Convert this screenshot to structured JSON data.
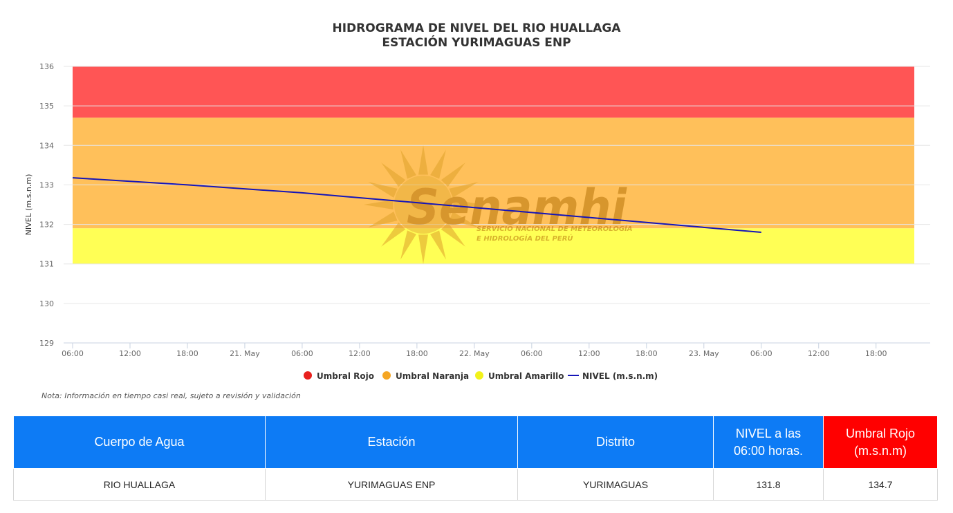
{
  "chart_data": {
    "type": "line",
    "title": "HIDROGRAMA DE NIVEL DEL RIO HUALLAGA",
    "subtitle": "ESTACIÓN YURIMAGUAS ENP",
    "ylabel": "NIVEL (m.s.n.m)",
    "ylim": [
      129,
      136
    ],
    "yticks": [
      129,
      130,
      131,
      132,
      133,
      134,
      135,
      136
    ],
    "x_hours_range": [
      0,
      60
    ],
    "xticks": [
      {
        "h": 0,
        "label": "06:00"
      },
      {
        "h": 6,
        "label": "12:00"
      },
      {
        "h": 12,
        "label": "18:00"
      },
      {
        "h": 18,
        "label": "21. May"
      },
      {
        "h": 24,
        "label": "06:00"
      },
      {
        "h": 30,
        "label": "12:00"
      },
      {
        "h": 36,
        "label": "18:00"
      },
      {
        "h": 42,
        "label": "22. May"
      },
      {
        "h": 48,
        "label": "06:00"
      },
      {
        "h": 54,
        "label": "12:00"
      },
      {
        "h": 60,
        "label": "18:00"
      },
      {
        "h": 66,
        "label": "23. May"
      },
      {
        "h": 72,
        "label": "06:00"
      },
      {
        "h": 78,
        "label": "12:00"
      },
      {
        "h": 84,
        "label": "18:00"
      }
    ],
    "x_end_hours": 90,
    "bands": [
      {
        "name": "Umbral Rojo",
        "from": 134.7,
        "to": 136,
        "color": "#ff5555",
        "legend_color": "#e8201d"
      },
      {
        "name": "Umbral Naranja",
        "from": 131.9,
        "to": 134.7,
        "color": "#ffc05a",
        "legend_color": "#f5a623"
      },
      {
        "name": "Umbral Amarillo",
        "from": 131.0,
        "to": 131.9,
        "color": "#ffff55",
        "legend_color": "#f2f21a"
      }
    ],
    "series": [
      {
        "name": "NIVEL (m.s.n.m)",
        "color": "#1515b8",
        "points": [
          {
            "h": 0,
            "y": 133.18
          },
          {
            "h": 12,
            "y": 133.0
          },
          {
            "h": 24,
            "y": 132.8
          },
          {
            "h": 36,
            "y": 132.55
          },
          {
            "h": 48,
            "y": 132.3
          },
          {
            "h": 60,
            "y": 132.05
          },
          {
            "h": 72,
            "y": 131.8
          }
        ]
      }
    ],
    "grid": true,
    "legend_position": "bottom"
  },
  "watermark": {
    "text": "Senamhi",
    "sub1": "SERVICIO NACIONAL DE METEOROLOGÍA",
    "sub2": "E HIDROLOGÍA DEL PERÚ"
  },
  "note": "Nota: Información en tiempo casi real, sujeto a revisión y validación",
  "table": {
    "headers": [
      "Cuerpo de Agua",
      "Estación",
      "Distrito",
      "NIVEL a las 06:00 horas.",
      "Umbral Rojo (m.s.n.m)"
    ],
    "row": [
      "RIO HUALLAGA",
      "YURIMAGUAS ENP",
      "YURIMAGUAS",
      "131.8",
      "134.7"
    ]
  }
}
